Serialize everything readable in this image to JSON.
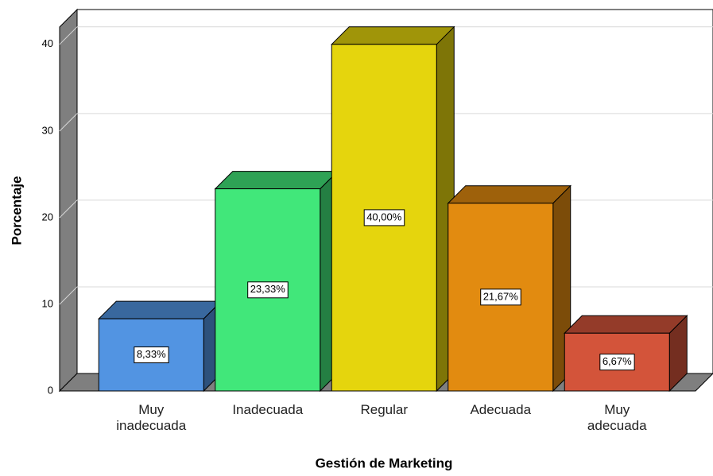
{
  "chart_data": {
    "type": "bar3d",
    "x_label": "Gestión de Marketing",
    "y_label": "Porcentaje",
    "categories": [
      "Muy inadecuada",
      "Inadecuada",
      "Regular",
      "Adecuada",
      "Muy adecuada"
    ],
    "values": [
      8.33,
      23.33,
      40.0,
      21.67,
      6.67
    ],
    "value_labels": [
      "8,33%",
      "23,33%",
      "40,00%",
      "21,67%",
      "6,67%"
    ],
    "colors": [
      "#5294e2",
      "#41e77a",
      "#e5d50d",
      "#e28b10",
      "#d3543a"
    ],
    "ylim": [
      0,
      42
    ],
    "yticks": [
      0,
      10,
      20,
      30,
      40
    ],
    "grid": true
  }
}
